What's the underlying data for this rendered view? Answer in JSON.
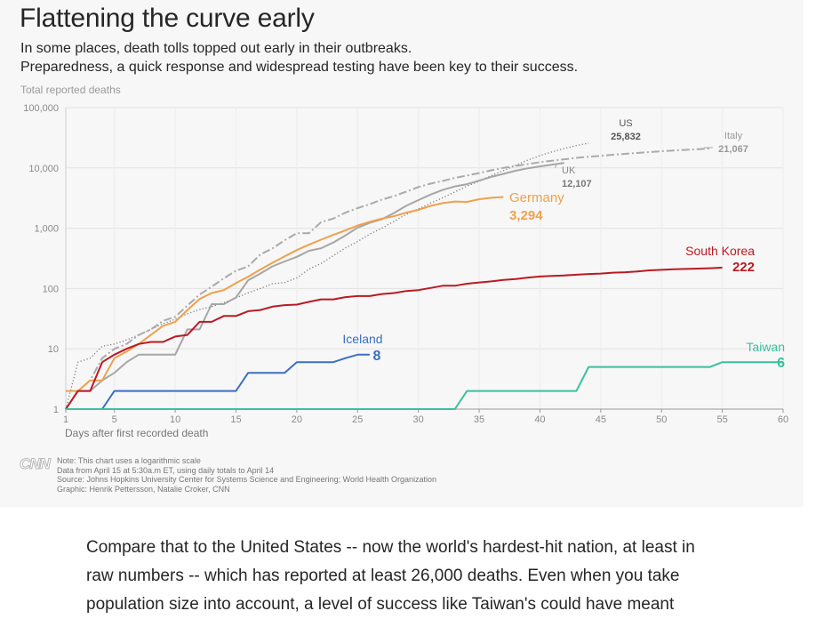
{
  "chart_data": {
    "type": "line",
    "title": "Flattening the curve early",
    "subtitle_lines": [
      "In some places, death tolls topped out early in their outbreaks.",
      "Preparedness, a quick response and widespread testing have been key to their success."
    ],
    "ylabel": "Total reported deaths",
    "xlabel": "Days after first recorded death",
    "yscale": "log",
    "ylim": [
      1,
      100000
    ],
    "xlim": [
      1,
      60
    ],
    "yticks": [
      1,
      10,
      100,
      1000,
      10000,
      100000
    ],
    "ytick_labels": [
      "1",
      "10",
      "100",
      "1,000",
      "10,000",
      "100,000"
    ],
    "xticks": [
      1,
      5,
      10,
      15,
      20,
      25,
      30,
      35,
      40,
      45,
      50,
      55,
      60
    ],
    "xtick_labels": [
      "1",
      "5",
      "10",
      "15",
      "20",
      "25",
      "30",
      "35",
      "40",
      "45",
      "50",
      "55",
      "60"
    ],
    "series": [
      {
        "name": "US",
        "label": "US",
        "value_label": "25,832",
        "color": "#7a7a7a",
        "style": "dotted",
        "points": [
          [
            1,
            1
          ],
          [
            2,
            6
          ],
          [
            3,
            7
          ],
          [
            4,
            11
          ],
          [
            5,
            12
          ],
          [
            6,
            14
          ],
          [
            7,
            17
          ],
          [
            8,
            21
          ],
          [
            9,
            26
          ],
          [
            10,
            31
          ],
          [
            11,
            38
          ],
          [
            12,
            45
          ],
          [
            13,
            50
          ],
          [
            14,
            58
          ],
          [
            15,
            70
          ],
          [
            16,
            85
          ],
          [
            17,
            100
          ],
          [
            18,
            120
          ],
          [
            19,
            125
          ],
          [
            20,
            150
          ],
          [
            21,
            210
          ],
          [
            22,
            260
          ],
          [
            23,
            350
          ],
          [
            24,
            470
          ],
          [
            25,
            600
          ],
          [
            26,
            800
          ],
          [
            27,
            1000
          ],
          [
            28,
            1300
          ],
          [
            29,
            1700
          ],
          [
            30,
            2100
          ],
          [
            31,
            2600
          ],
          [
            32,
            3200
          ],
          [
            33,
            4000
          ],
          [
            34,
            5000
          ],
          [
            35,
            6000
          ],
          [
            36,
            7500
          ],
          [
            37,
            9000
          ],
          [
            38,
            11000
          ],
          [
            39,
            13500
          ],
          [
            40,
            16000
          ],
          [
            41,
            18500
          ],
          [
            42,
            21000
          ],
          [
            43,
            23500
          ],
          [
            44,
            25832
          ]
        ]
      },
      {
        "name": "Italy",
        "label": "Italy",
        "value_label": "21,067",
        "color": "#aaaaaa",
        "style": "dashdot",
        "points": [
          [
            1,
            1
          ],
          [
            2,
            2
          ],
          [
            3,
            3
          ],
          [
            4,
            7
          ],
          [
            5,
            10
          ],
          [
            6,
            12
          ],
          [
            7,
            17
          ],
          [
            8,
            21
          ],
          [
            9,
            29
          ],
          [
            10,
            34
          ],
          [
            11,
            52
          ],
          [
            12,
            79
          ],
          [
            13,
            107
          ],
          [
            14,
            148
          ],
          [
            15,
            197
          ],
          [
            16,
            233
          ],
          [
            17,
            366
          ],
          [
            18,
            463
          ],
          [
            19,
            631
          ],
          [
            20,
            827
          ],
          [
            21,
            827
          ],
          [
            22,
            1266
          ],
          [
            23,
            1441
          ],
          [
            24,
            1809
          ],
          [
            25,
            2158
          ],
          [
            26,
            2503
          ],
          [
            27,
            2978
          ],
          [
            28,
            3405
          ],
          [
            29,
            4032
          ],
          [
            30,
            4825
          ],
          [
            31,
            5476
          ],
          [
            32,
            6077
          ],
          [
            33,
            6820
          ],
          [
            34,
            7503
          ],
          [
            35,
            8215
          ],
          [
            36,
            9134
          ],
          [
            37,
            10023
          ],
          [
            38,
            10779
          ],
          [
            39,
            11591
          ],
          [
            40,
            12428
          ],
          [
            41,
            13155
          ],
          [
            42,
            13915
          ],
          [
            43,
            14681
          ],
          [
            44,
            15362
          ],
          [
            45,
            15887
          ],
          [
            46,
            16523
          ],
          [
            47,
            17127
          ],
          [
            48,
            17669
          ],
          [
            49,
            18279
          ],
          [
            50,
            18849
          ],
          [
            51,
            19468
          ],
          [
            52,
            19899
          ],
          [
            53,
            20465
          ],
          [
            54,
            21067
          ]
        ]
      },
      {
        "name": "UK",
        "label": "UK",
        "value_label": "12,107",
        "color": "#a6a6a6",
        "style": "solid",
        "points": [
          [
            1,
            1
          ],
          [
            2,
            2
          ],
          [
            3,
            2
          ],
          [
            4,
            3
          ],
          [
            5,
            4
          ],
          [
            6,
            6
          ],
          [
            7,
            8
          ],
          [
            8,
            8
          ],
          [
            9,
            8
          ],
          [
            10,
            8
          ],
          [
            11,
            21
          ],
          [
            12,
            21
          ],
          [
            13,
            55
          ],
          [
            14,
            55
          ],
          [
            15,
            71
          ],
          [
            16,
            137
          ],
          [
            17,
            177
          ],
          [
            18,
            233
          ],
          [
            19,
            281
          ],
          [
            20,
            335
          ],
          [
            21,
            422
          ],
          [
            22,
            465
          ],
          [
            23,
            578
          ],
          [
            24,
            759
          ],
          [
            25,
            1019
          ],
          [
            26,
            1228
          ],
          [
            27,
            1408
          ],
          [
            28,
            1789
          ],
          [
            29,
            2352
          ],
          [
            30,
            2921
          ],
          [
            31,
            3605
          ],
          [
            32,
            4313
          ],
          [
            33,
            4934
          ],
          [
            34,
            5373
          ],
          [
            35,
            6159
          ],
          [
            36,
            7097
          ],
          [
            37,
            7978
          ],
          [
            38,
            8958
          ],
          [
            39,
            9875
          ],
          [
            40,
            10612
          ],
          [
            41,
            11329
          ],
          [
            42,
            12107
          ]
        ]
      },
      {
        "name": "Germany",
        "label": "Germany",
        "value_label": "3,294",
        "color": "#f0a04b",
        "style": "solid",
        "points": [
          [
            1,
            2
          ],
          [
            2,
            2
          ],
          [
            3,
            3
          ],
          [
            4,
            3
          ],
          [
            5,
            7
          ],
          [
            6,
            9
          ],
          [
            7,
            12
          ],
          [
            8,
            17
          ],
          [
            9,
            24
          ],
          [
            10,
            28
          ],
          [
            11,
            44
          ],
          [
            12,
            67
          ],
          [
            13,
            84
          ],
          [
            14,
            94
          ],
          [
            15,
            123
          ],
          [
            16,
            157
          ],
          [
            17,
            206
          ],
          [
            18,
            267
          ],
          [
            19,
            342
          ],
          [
            20,
            433
          ],
          [
            21,
            533
          ],
          [
            22,
            645
          ],
          [
            23,
            775
          ],
          [
            24,
            920
          ],
          [
            25,
            1107
          ],
          [
            26,
            1275
          ],
          [
            27,
            1444
          ],
          [
            28,
            1584
          ],
          [
            29,
            1810
          ],
          [
            30,
            2016
          ],
          [
            31,
            2349
          ],
          [
            32,
            2607
          ],
          [
            33,
            2767
          ],
          [
            34,
            2736
          ],
          [
            35,
            3022
          ],
          [
            36,
            3194
          ],
          [
            37,
            3294
          ]
        ]
      },
      {
        "name": "South Korea",
        "label": "South Korea",
        "value_label": "222",
        "color": "#bb1a22",
        "style": "solid",
        "points": [
          [
            1,
            1
          ],
          [
            2,
            2
          ],
          [
            3,
            2
          ],
          [
            4,
            6
          ],
          [
            5,
            8
          ],
          [
            6,
            10
          ],
          [
            7,
            12
          ],
          [
            8,
            13
          ],
          [
            9,
            13
          ],
          [
            10,
            16
          ],
          [
            11,
            17
          ],
          [
            12,
            28
          ],
          [
            13,
            28
          ],
          [
            14,
            35
          ],
          [
            15,
            35
          ],
          [
            16,
            42
          ],
          [
            17,
            44
          ],
          [
            18,
            50
          ],
          [
            19,
            53
          ],
          [
            20,
            54
          ],
          [
            21,
            60
          ],
          [
            22,
            66
          ],
          [
            23,
            66
          ],
          [
            24,
            72
          ],
          [
            25,
            75
          ],
          [
            26,
            75
          ],
          [
            27,
            81
          ],
          [
            28,
            84
          ],
          [
            29,
            91
          ],
          [
            30,
            94
          ],
          [
            31,
            102
          ],
          [
            32,
            111
          ],
          [
            33,
            111
          ],
          [
            34,
            120
          ],
          [
            35,
            126
          ],
          [
            36,
            131
          ],
          [
            37,
            139
          ],
          [
            38,
            144
          ],
          [
            39,
            152
          ],
          [
            40,
            158
          ],
          [
            41,
            162
          ],
          [
            42,
            165
          ],
          [
            43,
            169
          ],
          [
            44,
            174
          ],
          [
            45,
            177
          ],
          [
            46,
            183
          ],
          [
            47,
            186
          ],
          [
            48,
            192
          ],
          [
            49,
            200
          ],
          [
            50,
            204
          ],
          [
            51,
            208
          ],
          [
            52,
            211
          ],
          [
            53,
            214
          ],
          [
            54,
            217
          ],
          [
            55,
            222
          ]
        ]
      },
      {
        "name": "Iceland",
        "label": "Iceland",
        "value_label": "8",
        "color": "#3b6fc4",
        "style": "solid",
        "points": [
          [
            1,
            1
          ],
          [
            4,
            1
          ],
          [
            5,
            2
          ],
          [
            15,
            2
          ],
          [
            16,
            4
          ],
          [
            19,
            4
          ],
          [
            20,
            6
          ],
          [
            23,
            6
          ],
          [
            24,
            7
          ],
          [
            25,
            8
          ],
          [
            26,
            8
          ]
        ]
      },
      {
        "name": "Taiwan",
        "label": "Taiwan",
        "value_label": "6",
        "color": "#3bbfa0",
        "style": "solid",
        "points": [
          [
            1,
            1
          ],
          [
            33,
            1
          ],
          [
            34,
            2
          ],
          [
            43,
            2
          ],
          [
            44,
            5
          ],
          [
            54,
            5
          ],
          [
            55,
            6
          ],
          [
            60,
            6
          ]
        ]
      }
    ]
  },
  "footer": {
    "logo": "CNN",
    "notes": [
      "Note: This chart uses a logarithmic scale",
      "Data from April 15 at 5:30a.m ET, using daily totals to April 14",
      "Source: Johns Hopkins University Center for Systems Science and Engineering; World Health Organization",
      "Graphic: Henrik Pettersson, Natalie Croker, CNN"
    ]
  },
  "article": {
    "lines": [
      "Compare that to the United States -- now the world's hardest-hit nation, at least in",
      "raw numbers -- which has reported at least 26,000 deaths. Even when you take",
      "population size into account, a level of success like Taiwan's could have meant"
    ]
  }
}
